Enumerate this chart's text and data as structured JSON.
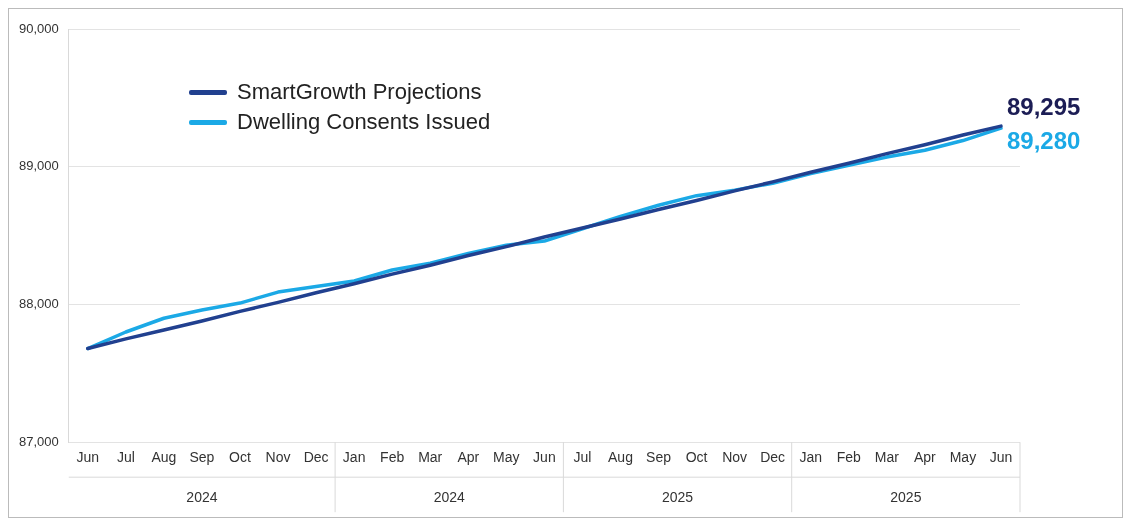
{
  "chart_data": {
    "type": "line",
    "categories": [
      "Jun",
      "Jul",
      "Aug",
      "Sep",
      "Oct",
      "Nov",
      "Dec",
      "Jan",
      "Feb",
      "Mar",
      "Apr",
      "May",
      "Jun",
      "Jul",
      "Aug",
      "Sep",
      "Oct",
      "Nov",
      "Dec",
      "Jan",
      "Feb",
      "Mar",
      "Apr",
      "May",
      "Jun"
    ],
    "series": [
      {
        "name": "SmartGrowth Projections",
        "color": "#21408f",
        "values": [
          87680,
          87750,
          87815,
          87880,
          87950,
          88015,
          88085,
          88150,
          88220,
          88285,
          88355,
          88420,
          88490,
          88555,
          88620,
          88690,
          88755,
          88825,
          88890,
          88960,
          89025,
          89095,
          89160,
          89230,
          89295
        ],
        "value_labels": [
          null,
          null,
          null,
          null,
          null,
          null,
          null,
          null,
          null,
          null,
          null,
          null,
          null,
          null,
          null,
          null,
          null,
          null,
          null,
          null,
          null,
          null,
          null,
          null,
          "89,295"
        ]
      },
      {
        "name": "Dwelling Consents Issued",
        "color": "#1ba9e6",
        "values": [
          87680,
          87800,
          87900,
          87960,
          88010,
          88090,
          88130,
          88170,
          88250,
          88300,
          88370,
          88430,
          88460,
          88550,
          88640,
          88720,
          88790,
          88830,
          88880,
          88950,
          89010,
          89070,
          89120,
          89190,
          89280
        ],
        "value_labels": [
          null,
          null,
          null,
          null,
          null,
          null,
          null,
          null,
          null,
          null,
          null,
          null,
          null,
          null,
          null,
          null,
          null,
          null,
          null,
          null,
          null,
          null,
          null,
          null,
          "89,280"
        ]
      }
    ],
    "ylim": [
      87000,
      90000
    ],
    "yticks": [
      {
        "value": 87000,
        "label": "87,000"
      },
      {
        "value": 88000,
        "label": "88,000"
      },
      {
        "value": 89000,
        "label": "89,000"
      },
      {
        "value": 90000,
        "label": "90,000"
      }
    ],
    "grid": "y",
    "legend": "top left",
    "marker": "none",
    "line_style": "solid",
    "annotations": [
      "2024",
      "2024",
      "2025",
      "2025"
    ]
  }
}
